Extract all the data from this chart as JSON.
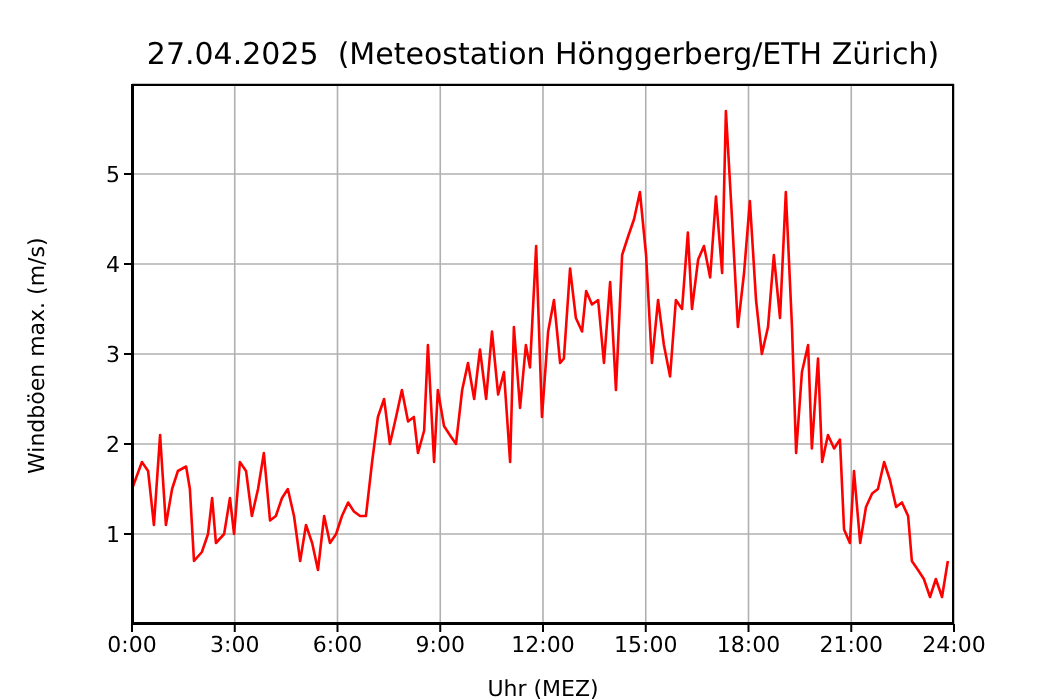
{
  "chart_data": {
    "type": "line",
    "title": "27.04.2025  (Meteostation Hönggerberg/ETH Zürich)",
    "xlabel": "Uhr (MEZ)",
    "ylabel": "Windböen max. (m/s)",
    "x": [
      0,
      0.29,
      0.47,
      0.64,
      0.82,
      0.99,
      1.17,
      1.34,
      1.58,
      1.69,
      1.81,
      2.04,
      2.22,
      2.34,
      2.45,
      2.69,
      2.86,
      2.98,
      3.15,
      3.33,
      3.5,
      3.68,
      3.85,
      4.03,
      4.2,
      4.38,
      4.55,
      4.73,
      4.91,
      5.08,
      5.26,
      5.43,
      5.61,
      5.78,
      5.96,
      6.13,
      6.31,
      6.48,
      6.66,
      6.83,
      7.01,
      7.18,
      7.36,
      7.53,
      7.71,
      7.88,
      8.06,
      8.23,
      8.35,
      8.53,
      8.64,
      8.82,
      8.93,
      9.11,
      9.28,
      9.46,
      9.64,
      9.81,
      9.99,
      10.16,
      10.34,
      10.51,
      10.69,
      10.86,
      11.04,
      11.15,
      11.33,
      11.5,
      11.62,
      11.8,
      11.97,
      12.15,
      12.32,
      12.5,
      12.61,
      12.79,
      12.96,
      13.14,
      13.26,
      13.43,
      13.61,
      13.78,
      13.96,
      14.13,
      14.31,
      14.48,
      14.66,
      14.83,
      15.01,
      15.18,
      15.36,
      15.53,
      15.71,
      15.88,
      16.06,
      16.23,
      16.35,
      16.53,
      16.7,
      16.88,
      17.05,
      17.23,
      17.34,
      17.52,
      17.69,
      17.87,
      18.04,
      18.22,
      18.39,
      18.57,
      18.74,
      18.92,
      19.09,
      19.27,
      19.39,
      19.56,
      19.74,
      19.85,
      20.03,
      20.15,
      20.32,
      20.5,
      20.67,
      20.79,
      20.96,
      21.08,
      21.26,
      21.43,
      21.61,
      21.78,
      21.96,
      22.13,
      22.31,
      22.48,
      22.66,
      22.77,
      22.95,
      23.12,
      23.3,
      23.47,
      23.65,
      23.82
    ],
    "series": [
      {
        "color": "#ff0000",
        "values": [
          1.5,
          1.8,
          1.7,
          1.1,
          2.1,
          1.1,
          1.5,
          1.7,
          1.75,
          1.5,
          0.7,
          0.8,
          1.0,
          1.4,
          0.9,
          1.0,
          1.4,
          1.0,
          1.8,
          1.7,
          1.2,
          1.5,
          1.9,
          1.15,
          1.2,
          1.4,
          1.5,
          1.2,
          0.7,
          1.1,
          0.9,
          0.6,
          1.2,
          0.9,
          1.0,
          1.2,
          1.35,
          1.25,
          1.2,
          1.2,
          1.8,
          2.3,
          2.5,
          2.0,
          2.3,
          2.6,
          2.25,
          2.3,
          1.9,
          2.15,
          3.1,
          1.8,
          2.6,
          2.2,
          2.1,
          2.0,
          2.6,
          2.9,
          2.5,
          3.05,
          2.5,
          3.25,
          2.55,
          2.8,
          1.8,
          3.3,
          2.4,
          3.1,
          2.85,
          4.2,
          2.3,
          3.25,
          3.6,
          2.9,
          2.95,
          3.95,
          3.4,
          3.25,
          3.7,
          3.55,
          3.6,
          2.9,
          3.8,
          2.6,
          4.1,
          4.3,
          4.5,
          4.8,
          4.1,
          2.9,
          3.6,
          3.1,
          2.75,
          3.6,
          3.5,
          4.35,
          3.5,
          4.05,
          4.2,
          3.85,
          4.75,
          3.9,
          5.7,
          4.5,
          3.3,
          3.9,
          4.7,
          3.6,
          3.0,
          3.3,
          4.1,
          3.4,
          4.8,
          3.3,
          1.9,
          2.8,
          3.1,
          1.95,
          2.95,
          1.8,
          2.1,
          1.95,
          2.05,
          1.05,
          0.9,
          1.7,
          0.9,
          1.3,
          1.45,
          1.5,
          1.8,
          1.6,
          1.3,
          1.35,
          1.2,
          0.7,
          0.6,
          0.5,
          0.3,
          0.5,
          0.3,
          0.7
        ]
      }
    ],
    "xlim": [
      0,
      24
    ],
    "ylim": [
      0,
      6
    ],
    "xticks": [
      {
        "value": 0,
        "label": "0:00"
      },
      {
        "value": 3,
        "label": "3:00"
      },
      {
        "value": 6,
        "label": "6:00"
      },
      {
        "value": 9,
        "label": "9:00"
      },
      {
        "value": 12,
        "label": "12:00"
      },
      {
        "value": 15,
        "label": "15:00"
      },
      {
        "value": 18,
        "label": "18:00"
      },
      {
        "value": 21,
        "label": "21:00"
      },
      {
        "value": 24,
        "label": "24:00"
      }
    ],
    "yticks": [
      1,
      2,
      3,
      4,
      5
    ],
    "grid": true
  }
}
